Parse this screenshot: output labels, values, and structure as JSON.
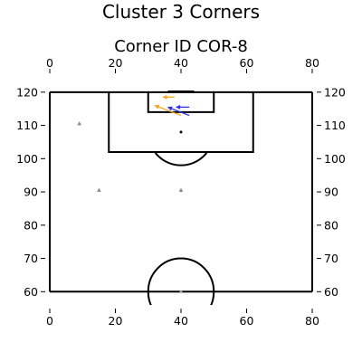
{
  "figure": {
    "suptitle": "Cluster 3 Corners",
    "title": "Corner ID COR-8"
  },
  "chart_data": {
    "type": "scatter",
    "title": "Corner ID COR-8",
    "xlim": [
      0,
      80
    ],
    "ylim": [
      56,
      120.5
    ],
    "x_ticks": [
      0,
      20,
      40,
      60,
      80
    ],
    "y_ticks": [
      60,
      70,
      80,
      90,
      100,
      110,
      120
    ],
    "x_ticks_top_and_bottom": true,
    "y_ticks_left_and_right": true,
    "grid": false,
    "pitch_markings": {
      "touchline_left_x": 0,
      "touchline_right_x": 80,
      "halfway_line_y": 60,
      "goal_line_y": 120,
      "penalty_area": {
        "x": [
          18,
          62
        ],
        "y": [
          102,
          120
        ]
      },
      "six_yard_box": {
        "x": [
          30,
          50
        ],
        "y": [
          114,
          120
        ]
      },
      "goal": {
        "x": [
          36,
          44
        ],
        "y": 120
      },
      "penalty_spot": [
        40,
        108
      ],
      "center_circle_radius": 10,
      "penalty_arc_radius": 10
    },
    "markers": [
      {
        "x": 9,
        "y": 110.5,
        "color": "#888888"
      },
      {
        "x": 15,
        "y": 90.5,
        "color": "#888888"
      },
      {
        "x": 40,
        "y": 90.5,
        "color": "#888888"
      },
      {
        "x": 40,
        "y": 60,
        "color": "#aaaaaa"
      }
    ],
    "arrows": [
      {
        "from": [
          38,
          118.5
        ],
        "to": [
          34.5,
          118.5
        ],
        "color": "#f5a623"
      },
      {
        "from": [
          42.5,
          115.5
        ],
        "to": [
          38.5,
          115.5
        ],
        "color": "#3333ee"
      },
      {
        "from": [
          42.5,
          113
        ],
        "to": [
          36,
          115.5
        ],
        "color": "#3333ee"
      },
      {
        "from": [
          40,
          113
        ],
        "to": [
          32,
          116
        ],
        "color": "#f5a623"
      }
    ]
  }
}
